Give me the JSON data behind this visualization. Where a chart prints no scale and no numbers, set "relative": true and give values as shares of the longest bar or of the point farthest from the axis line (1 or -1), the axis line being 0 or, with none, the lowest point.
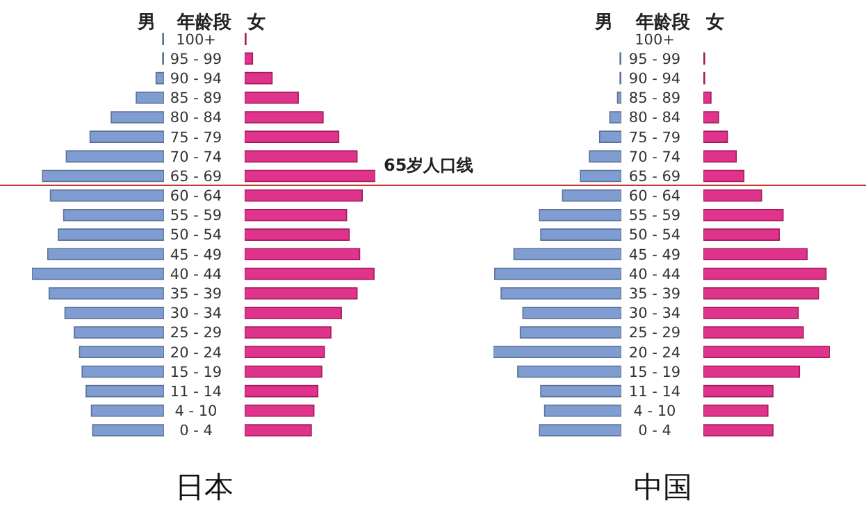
{
  "chart_data": [
    {
      "type": "bar",
      "orientation": "horizontal",
      "relative": true,
      "tick_labels": false,
      "categories": [
        "100+",
        "95 - 99",
        "90 - 94",
        "85 - 89",
        "80 - 84",
        "75 - 79",
        "70 - 74",
        "65 - 69",
        "60 - 64",
        "55 - 59",
        "50 - 54",
        "45 - 49",
        "40 - 44",
        "35 - 39",
        "30 - 34",
        "25 - 29",
        "20 - 24",
        "15 - 19",
        "11 - 14",
        "4 - 10",
        "0 - 4"
      ],
      "series": [
        {
          "name": "男",
          "color": "#7f9dd0",
          "values": [
            -0.01,
            -0.01,
            -0.06,
            -0.21,
            -0.4,
            -0.56,
            -0.74,
            -0.92,
            -0.86,
            -0.76,
            -0.8,
            -0.88,
            -1,
            -0.87,
            -0.75,
            -0.68,
            -0.64,
            -0.62,
            -0.59,
            -0.55,
            -0.54
          ]
        }
      ],
      "ref_lines": [
        {
          "axis": "y",
          "value": "65 - 69",
          "color": "#c0392b"
        }
      ]
    },
    {
      "type": "bar",
      "orientation": "horizontal",
      "relative": true,
      "title": "日本",
      "ylabel": "年龄段",
      "categories": [
        "100+",
        "95 - 99",
        "90 - 94",
        "85 - 89",
        "80 - 84",
        "75 - 79",
        "70 - 74",
        "65 - 69",
        "60 - 64",
        "55 - 59",
        "50 - 54",
        "45 - 49",
        "40 - 44",
        "35 - 39",
        "30 - 34",
        "25 - 29",
        "20 - 24",
        "15 - 19",
        "11 - 14",
        "4 - 10",
        "0 - 4"
      ],
      "series": [
        {
          "name": "女",
          "color": "#e0338b",
          "values": [
            0.01,
            0.06,
            0.21,
            0.41,
            0.6,
            0.72,
            0.86,
            1,
            0.9,
            0.78,
            0.8,
            0.88,
            0.99,
            0.86,
            0.74,
            0.66,
            0.61,
            0.59,
            0.56,
            0.53,
            0.51
          ]
        }
      ],
      "ref_lines": [
        {
          "axis": "y",
          "value": "65 - 69",
          "label": "65岁人口线",
          "color": "#c0392b"
        }
      ]
    },
    {
      "type": "bar",
      "orientation": "horizontal",
      "relative": true,
      "tick_labels": false,
      "categories": [
        "100+",
        "95 - 99",
        "90 - 94",
        "85 - 89",
        "80 - 84",
        "75 - 79",
        "70 - 74",
        "65 - 69",
        "60 - 64",
        "55 - 59",
        "50 - 54",
        "45 - 49",
        "40 - 44",
        "35 - 39",
        "30 - 34",
        "25 - 29",
        "20 - 24",
        "15 - 19",
        "11 - 14",
        "4 - 10",
        "0 - 4"
      ],
      "series": [
        {
          "name": "男",
          "color": "#7f9dd0",
          "values": [
            0,
            -0.01,
            -0.01,
            -0.03,
            -0.09,
            -0.17,
            -0.25,
            -0.32,
            -0.46,
            -0.64,
            -0.63,
            -0.84,
            -0.99,
            -0.94,
            -0.77,
            -0.79,
            -1,
            -0.81,
            -0.63,
            -0.6,
            -0.64
          ]
        }
      ],
      "ref_lines": [
        {
          "axis": "y",
          "value": "65 - 69",
          "color": "#c0392b"
        }
      ]
    },
    {
      "type": "bar",
      "orientation": "horizontal",
      "relative": true,
      "title": "中国",
      "ylabel": "年龄段",
      "categories": [
        "100+",
        "95 - 99",
        "90 - 94",
        "85 - 89",
        "80 - 84",
        "75 - 79",
        "70 - 74",
        "65 - 69",
        "60 - 64",
        "55 - 59",
        "50 - 54",
        "45 - 49",
        "40 - 44",
        "35 - 39",
        "30 - 34",
        "25 - 29",
        "20 - 24",
        "15 - 19",
        "11 - 14",
        "4 - 10",
        "0 - 4"
      ],
      "series": [
        {
          "name": "女",
          "color": "#e0338b",
          "values": [
            0,
            0.01,
            0.01,
            0.06,
            0.12,
            0.19,
            0.26,
            0.32,
            0.46,
            0.63,
            0.6,
            0.82,
            0.97,
            0.91,
            0.75,
            0.79,
            1,
            0.76,
            0.55,
            0.51,
            0.55
          ]
        }
      ],
      "ref_lines": [
        {
          "axis": "y",
          "value": "65 - 69",
          "color": "#c0392b"
        }
      ]
    }
  ]
}
